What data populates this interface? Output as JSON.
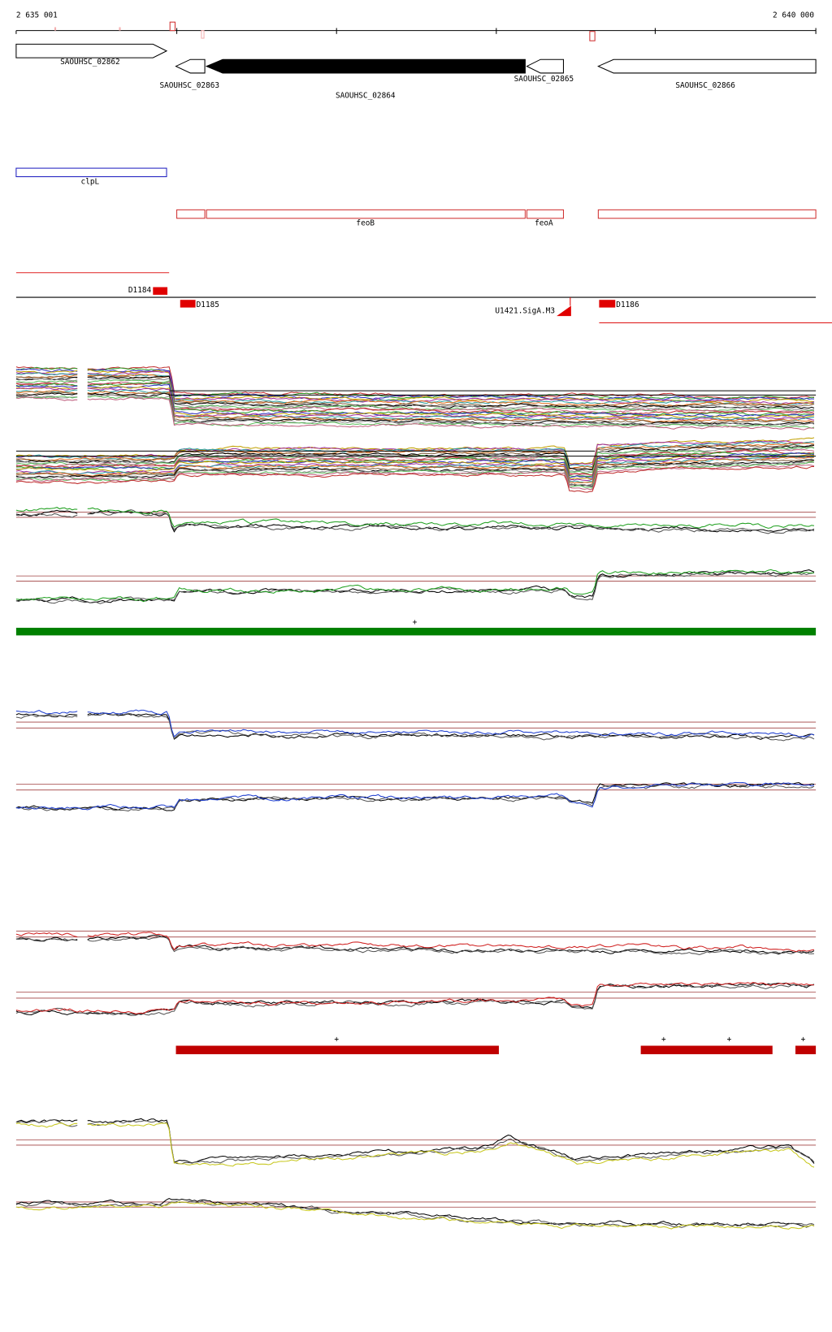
{
  "ruler": {
    "start_label": "2 635 001",
    "end_label": "2 640 000"
  },
  "genes": [
    {
      "label": "SAOUHSC_02862"
    },
    {
      "label": "SAOUHSC_02863"
    },
    {
      "label": "SAOUHSC_02864"
    },
    {
      "label": "SAOUHSC_02865"
    },
    {
      "label": "SAOUHSC_02866"
    }
  ],
  "features": [
    {
      "label": "clpL"
    },
    {
      "label": "feoB"
    },
    {
      "label": "feoA"
    }
  ],
  "elements": [
    {
      "label": "D1184"
    },
    {
      "label": "D1185"
    },
    {
      "label": "U1421.SigA.M3"
    },
    {
      "label": "D1186"
    }
  ],
  "segment_marks": [
    "+",
    "+",
    "+",
    "+",
    "+"
  ]
}
